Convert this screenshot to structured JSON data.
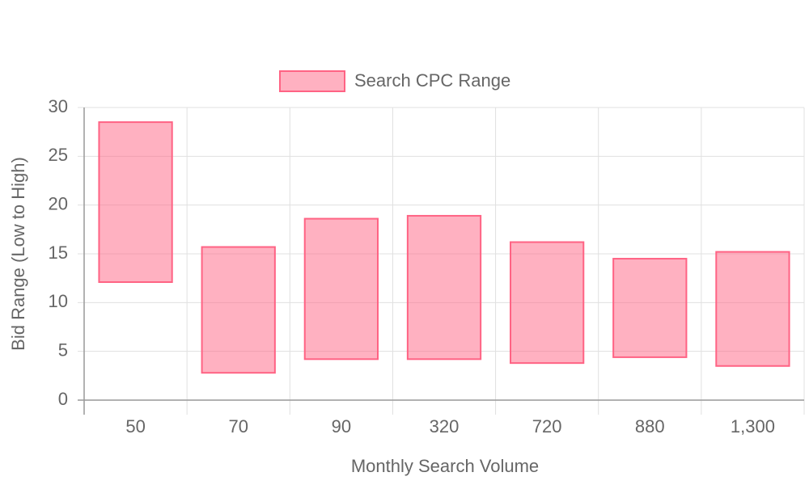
{
  "chart_data": {
    "type": "floating-bar",
    "categories": [
      "50",
      "70",
      "90",
      "320",
      "720",
      "880",
      "1,300"
    ],
    "series": [
      {
        "name": "Search CPC Range",
        "color": "#ff6384",
        "values": [
          [
            12.1,
            28.5
          ],
          [
            2.8,
            15.7
          ],
          [
            4.2,
            18.6
          ],
          [
            4.2,
            18.9
          ],
          [
            3.8,
            16.2
          ],
          [
            4.4,
            14.5
          ],
          [
            3.5,
            15.2
          ]
        ]
      }
    ],
    "x_label": "Monthly Search Volume",
    "y_label": "Bid Range (Low to High)",
    "ylim": [
      0,
      30
    ],
    "yticks": [
      0,
      5,
      10,
      15,
      20,
      25,
      30
    ],
    "grid": true,
    "legend": "top"
  }
}
